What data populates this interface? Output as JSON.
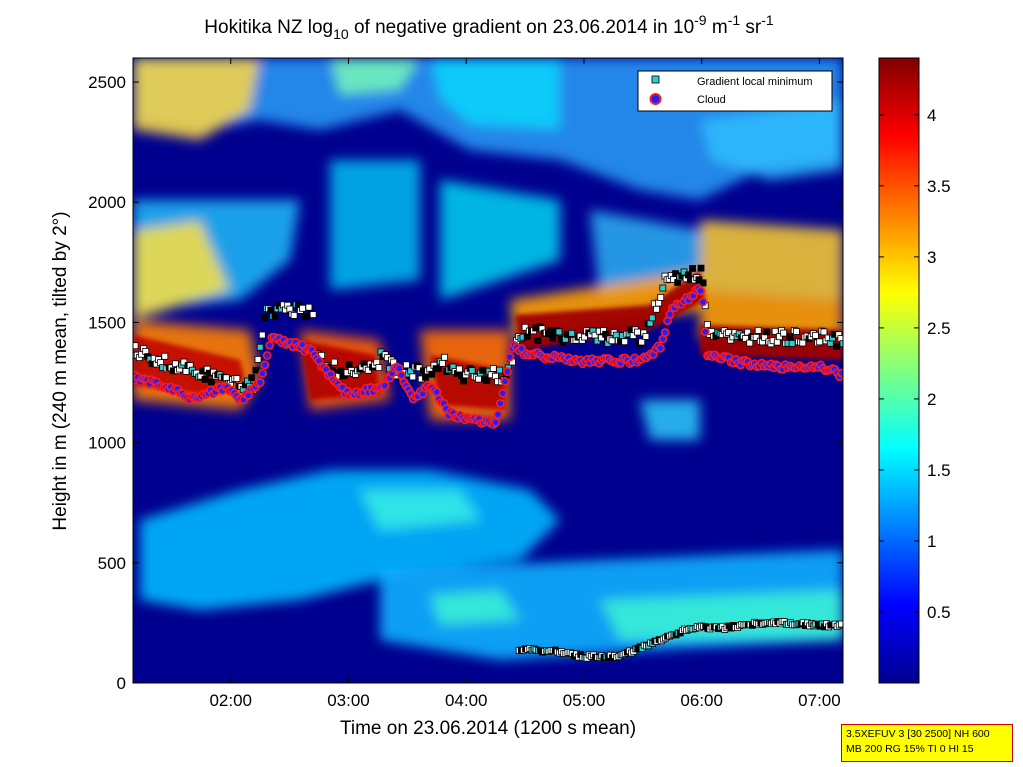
{
  "chart_data": {
    "type": "heatmap",
    "title_parts": {
      "t1": "Hokitika NZ log",
      "t2": "10",
      "t3": " of negative gradient on 23.06.2014 in 10",
      "t4": "-9",
      "t5": " m",
      "t6": "-1",
      "t7": " sr",
      "t8": "-1"
    },
    "xlabel": "Time on 23.06.2014 (1200 s mean)",
    "ylabel": "Height in m (240 m mean, tilted by 2°)",
    "x_range_hours": [
      1.17,
      7.2
    ],
    "y_range_m": [
      0,
      2600
    ],
    "x_ticks": [
      {
        "label": "02:00",
        "hour": 2.0
      },
      {
        "label": "03:00",
        "hour": 3.0
      },
      {
        "label": "04:00",
        "hour": 4.0
      },
      {
        "label": "05:00",
        "hour": 5.0
      },
      {
        "label": "06:00",
        "hour": 6.0
      },
      {
        "label": "07:00",
        "hour": 7.0
      }
    ],
    "y_ticks": [
      {
        "label": "0",
        "value": 0
      },
      {
        "label": "500",
        "value": 500
      },
      {
        "label": "1000",
        "value": 1000
      },
      {
        "label": "1500",
        "value": 1500
      },
      {
        "label": "2000",
        "value": 2000
      },
      {
        "label": "2500",
        "value": 2500
      }
    ],
    "colorbar": {
      "range": [
        0,
        4.4
      ],
      "colormap": "jet",
      "ticks": [
        {
          "label": "0.5",
          "value": 0.5
        },
        {
          "label": "1",
          "value": 1
        },
        {
          "label": "1.5",
          "value": 1.5
        },
        {
          "label": "2",
          "value": 2
        },
        {
          "label": "2.5",
          "value": 2.5
        },
        {
          "label": "3",
          "value": 3
        },
        {
          "label": "3.5",
          "value": 3.5
        },
        {
          "label": "4",
          "value": 4
        }
      ]
    },
    "legend": {
      "position": "top-right",
      "entries": [
        {
          "label": "Gradient local minimum",
          "marker": "square",
          "color": "#33cccc"
        },
        {
          "label": "Cloud",
          "marker": "circle",
          "color": "#ff1a1a"
        }
      ]
    },
    "features": [
      {
        "name": "cloud base",
        "points": [
          [
            1.17,
            1270
          ],
          [
            1.5,
            1230
          ],
          [
            1.65,
            1180
          ],
          [
            1.95,
            1230
          ],
          [
            2.1,
            1180
          ],
          [
            2.25,
            1250
          ],
          [
            2.35,
            1440
          ],
          [
            2.7,
            1380
          ],
          [
            2.8,
            1300
          ],
          [
            3.0,
            1200
          ],
          [
            3.2,
            1220
          ],
          [
            3.3,
            1230
          ],
          [
            3.4,
            1330
          ],
          [
            3.55,
            1180
          ],
          [
            3.7,
            1240
          ],
          [
            3.85,
            1120
          ],
          [
            4.0,
            1100
          ],
          [
            4.25,
            1080
          ],
          [
            4.4,
            1420
          ],
          [
            4.5,
            1370
          ],
          [
            5.0,
            1340
          ],
          [
            5.3,
            1340
          ],
          [
            5.5,
            1340
          ],
          [
            5.65,
            1400
          ],
          [
            5.75,
            1560
          ],
          [
            6.0,
            1640
          ],
          [
            6.05,
            1360
          ],
          [
            6.5,
            1320
          ],
          [
            6.8,
            1310
          ],
          [
            7.0,
            1320
          ],
          [
            7.2,
            1280
          ]
        ]
      },
      {
        "name": "gradient local minimum (upper)",
        "points": [
          [
            1.17,
            1380
          ],
          [
            1.5,
            1320
          ],
          [
            1.8,
            1280
          ],
          [
            2.2,
            1240
          ],
          [
            2.3,
            1550
          ],
          [
            2.7,
            1550
          ],
          [
            2.7,
            1370
          ],
          [
            2.9,
            1300
          ],
          [
            3.2,
            1300
          ],
          [
            3.3,
            1370
          ],
          [
            3.4,
            1300
          ],
          [
            3.6,
            1290
          ],
          [
            3.8,
            1330
          ],
          [
            4.0,
            1280
          ],
          [
            4.35,
            1280
          ],
          [
            4.45,
            1460
          ],
          [
            5.0,
            1440
          ],
          [
            5.5,
            1440
          ],
          [
            5.7,
            1680
          ],
          [
            6.0,
            1700
          ],
          [
            6.05,
            1460
          ],
          [
            6.5,
            1440
          ],
          [
            7.0,
            1440
          ],
          [
            7.2,
            1420
          ]
        ]
      },
      {
        "name": "gradient local minimum (lower)",
        "points": [
          [
            4.45,
            140
          ],
          [
            4.8,
            130
          ],
          [
            5.0,
            110
          ],
          [
            5.3,
            110
          ],
          [
            5.5,
            150
          ],
          [
            5.7,
            190
          ],
          [
            5.9,
            230
          ],
          [
            6.2,
            230
          ],
          [
            6.5,
            250
          ],
          [
            6.7,
            250
          ],
          [
            7.0,
            240
          ],
          [
            7.2,
            240
          ]
        ]
      }
    ]
  },
  "info_box": {
    "line1": "3.5XEFUV 3 [30 2500] NH 600",
    "line2": "MB 200 RG 15% TI 0 HI 15"
  }
}
